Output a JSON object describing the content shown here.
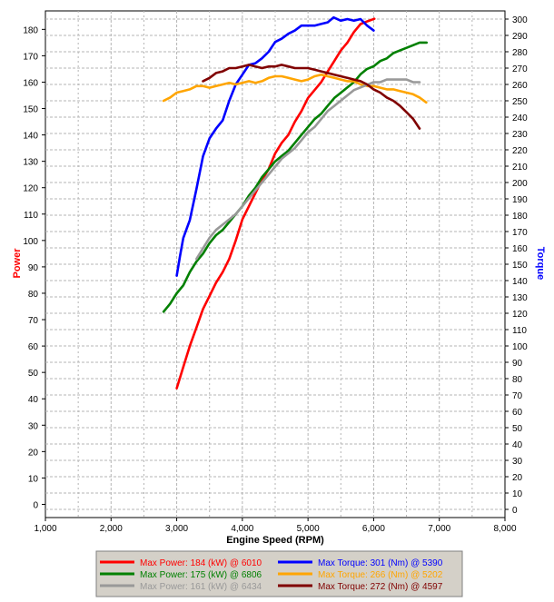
{
  "colors": {
    "red": "#ff0000",
    "blue": "#0000ff",
    "green": "#008000",
    "orange": "#ffa500",
    "gray": "#999999",
    "darkred": "#800000",
    "grid": "#b4b4b4",
    "legend_bg": "#d4d0c8"
  },
  "chart_data": {
    "type": "line",
    "xlabel": "Engine Speed (RPM)",
    "ylabel": "Power",
    "y2label": "Torque",
    "xlim": [
      1000,
      8000
    ],
    "ylim": [
      -5,
      187
    ],
    "y2lim": [
      -5,
      305
    ],
    "x_ticks": [
      "1,000",
      "2,000",
      "3,000",
      "4,000",
      "5,000",
      "6,000",
      "7,000",
      "8,000"
    ],
    "y_ticks": [
      "0",
      "10",
      "20",
      "30",
      "40",
      "50",
      "60",
      "70",
      "80",
      "90",
      "100",
      "110",
      "120",
      "130",
      "140",
      "150",
      "160",
      "170",
      "180"
    ],
    "y2_ticks": [
      "0",
      "10",
      "20",
      "30",
      "40",
      "50",
      "60",
      "70",
      "80",
      "90",
      "100",
      "110",
      "120",
      "130",
      "140",
      "150",
      "160",
      "170",
      "180",
      "190",
      "200",
      "210",
      "220",
      "230",
      "240",
      "250",
      "260",
      "270",
      "280",
      "290",
      "300"
    ],
    "grid": true,
    "legend_placement": "bottom",
    "series": [
      {
        "name": "Max Power: 184 (kW) @ 6010",
        "axis": "left",
        "color": "red",
        "x": [
          3000,
          3100,
          3200,
          3300,
          3400,
          3500,
          3600,
          3700,
          3800,
          3900,
          4000,
          4100,
          4200,
          4300,
          4400,
          4500,
          4600,
          4700,
          4800,
          4900,
          5000,
          5100,
          5200,
          5300,
          5400,
          5500,
          5600,
          5700,
          5800,
          5900,
          6010
        ],
        "y": [
          44,
          52,
          60,
          67,
          74,
          79,
          84,
          88,
          93,
          100,
          108,
          113,
          118,
          123,
          127,
          133,
          137,
          140,
          145,
          149,
          154,
          157,
          160,
          164,
          168,
          172,
          175,
          179,
          182,
          183,
          184
        ]
      },
      {
        "name": "Max Torque: 301 (Nm) @ 5390",
        "axis": "right",
        "color": "blue",
        "x": [
          3000,
          3050,
          3100,
          3200,
          3300,
          3400,
          3500,
          3600,
          3700,
          3800,
          3900,
          4000,
          4100,
          4200,
          4300,
          4400,
          4500,
          4600,
          4700,
          4800,
          4900,
          5000,
          5100,
          5200,
          5300,
          5390,
          5500,
          5600,
          5700,
          5800,
          5900,
          6000
        ],
        "y": [
          143,
          155,
          166,
          177,
          196,
          216,
          227,
          233,
          238,
          250,
          260,
          266,
          272,
          273,
          276,
          280,
          286,
          288,
          291,
          293,
          296,
          296,
          296,
          297,
          298,
          301,
          299,
          300,
          299,
          300,
          296,
          293
        ]
      },
      {
        "name": "Max Power: 175 (kW) @ 6806",
        "axis": "left",
        "color": "green",
        "x": [
          2800,
          2900,
          3000,
          3100,
          3200,
          3300,
          3400,
          3500,
          3600,
          3700,
          3800,
          3900,
          4000,
          4100,
          4200,
          4300,
          4400,
          4500,
          4600,
          4700,
          4800,
          4900,
          5000,
          5100,
          5200,
          5300,
          5400,
          5500,
          5600,
          5700,
          5800,
          5900,
          6000,
          6100,
          6200,
          6300,
          6400,
          6500,
          6600,
          6700,
          6806
        ],
        "y": [
          73,
          76,
          80,
          83,
          88,
          92,
          95,
          99,
          102,
          104,
          107,
          110,
          113,
          117,
          120,
          124,
          127,
          130,
          132,
          134,
          137,
          140,
          143,
          146,
          148,
          151,
          154,
          156,
          158,
          160,
          163,
          165,
          166,
          168,
          169,
          171,
          172,
          173,
          174,
          175,
          175
        ]
      },
      {
        "name": "Max Torque: 266 (Nm) @ 5202",
        "axis": "right",
        "color": "orange",
        "x": [
          2800,
          2900,
          3000,
          3100,
          3200,
          3300,
          3400,
          3500,
          3600,
          3700,
          3800,
          3900,
          4000,
          4100,
          4200,
          4300,
          4400,
          4500,
          4600,
          4700,
          4800,
          4900,
          5000,
          5100,
          5202,
          5300,
          5400,
          5500,
          5600,
          5700,
          5800,
          5900,
          6000,
          6100,
          6200,
          6300,
          6400,
          6500,
          6600,
          6700,
          6800
        ],
        "y": [
          250,
          252,
          255,
          256,
          257,
          259,
          259,
          258,
          259,
          260,
          261,
          260,
          261,
          262,
          261,
          262,
          264,
          265,
          265,
          264,
          263,
          262,
          263,
          265,
          266,
          265,
          264,
          263,
          262,
          262,
          260,
          259,
          259,
          258,
          257,
          257,
          256,
          255,
          254,
          252,
          249
        ]
      },
      {
        "name": "Max Power: 161 (kW) @ 6434",
        "axis": "left",
        "color": "gray",
        "x": [
          3300,
          3400,
          3500,
          3600,
          3700,
          3800,
          3900,
          4000,
          4100,
          4200,
          4300,
          4400,
          4500,
          4600,
          4700,
          4800,
          4900,
          5000,
          5100,
          5200,
          5300,
          5400,
          5500,
          5600,
          5700,
          5800,
          5900,
          6000,
          6100,
          6200,
          6300,
          6434,
          6500,
          6600,
          6700
        ],
        "y": [
          93,
          97,
          101,
          104,
          106,
          108,
          110,
          113,
          116,
          119,
          122,
          125,
          128,
          131,
          133,
          135,
          138,
          141,
          143,
          146,
          149,
          151,
          153,
          155,
          157,
          158,
          159,
          160,
          160,
          161,
          161,
          161,
          161,
          160,
          160
        ]
      },
      {
        "name": "Max Torque: 272 (Nm) @ 4597",
        "axis": "right",
        "color": "darkred",
        "x": [
          3400,
          3500,
          3600,
          3700,
          3800,
          3900,
          4000,
          4100,
          4200,
          4300,
          4400,
          4500,
          4597,
          4700,
          4800,
          4900,
          5000,
          5100,
          5200,
          5300,
          5400,
          5500,
          5600,
          5700,
          5800,
          5900,
          6000,
          6100,
          6200,
          6300,
          6400,
          6500,
          6600,
          6700
        ],
        "y": [
          262,
          264,
          267,
          268,
          270,
          270,
          271,
          272,
          271,
          270,
          271,
          271,
          272,
          271,
          270,
          270,
          270,
          269,
          268,
          267,
          266,
          265,
          264,
          263,
          262,
          260,
          257,
          255,
          252,
          250,
          247,
          243,
          239,
          233
        ]
      }
    ],
    "legend": [
      {
        "label": "Max Power: 184 (kW) @ 6010",
        "color": "red"
      },
      {
        "label": "Max Torque: 301 (Nm) @ 5390",
        "color": "blue"
      },
      {
        "label": "Max Power: 175 (kW) @ 6806",
        "color": "green"
      },
      {
        "label": "Max Torque: 266 (Nm) @ 5202",
        "color": "orange"
      },
      {
        "label": "Max Power: 161 (kW) @ 6434",
        "color": "gray"
      },
      {
        "label": "Max Torque: 272 (Nm) @ 4597",
        "color": "darkred"
      }
    ]
  }
}
